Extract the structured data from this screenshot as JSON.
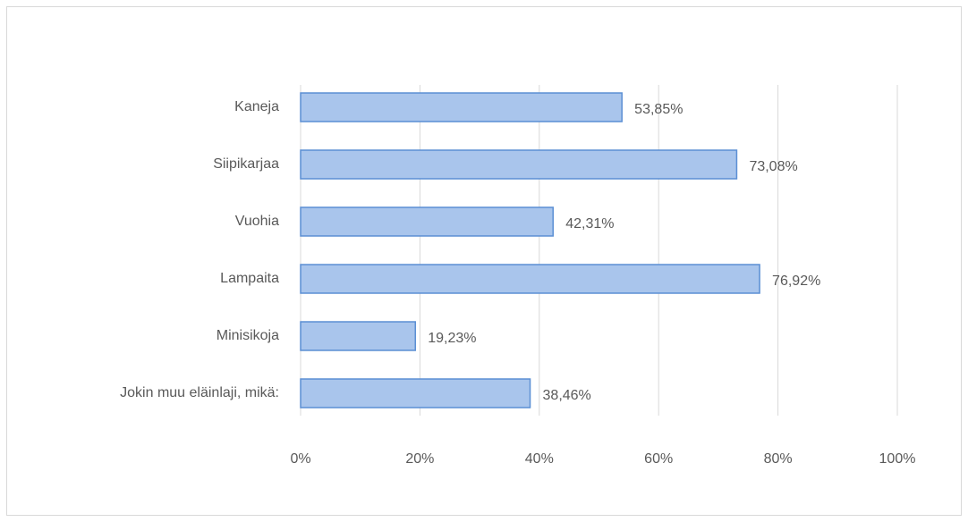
{
  "chart_data": {
    "type": "bar",
    "orientation": "horizontal",
    "categories": [
      "Kaneja",
      "Siipikarjaa",
      "Vuohia",
      "Lampaita",
      "Minisikoja",
      "Jokin muu eläinlaji, mikä:"
    ],
    "values": [
      53.85,
      73.08,
      42.31,
      76.92,
      19.23,
      38.46
    ],
    "value_labels": [
      "53,85%",
      "73,08%",
      "42,31%",
      "76,92%",
      "19,23%",
      "38,46%"
    ],
    "color": "#a9c5ec",
    "edge_color": "#5b8fd4",
    "xlim": [
      0,
      100
    ],
    "xticks": [
      {
        "value": 0,
        "label": "0%"
      },
      {
        "value": 20,
        "label": "20%"
      },
      {
        "value": 40,
        "label": "40%"
      },
      {
        "value": 60,
        "label": "60%"
      },
      {
        "value": 80,
        "label": "80%"
      },
      {
        "value": 100,
        "label": "100%"
      }
    ],
    "grid": true
  }
}
